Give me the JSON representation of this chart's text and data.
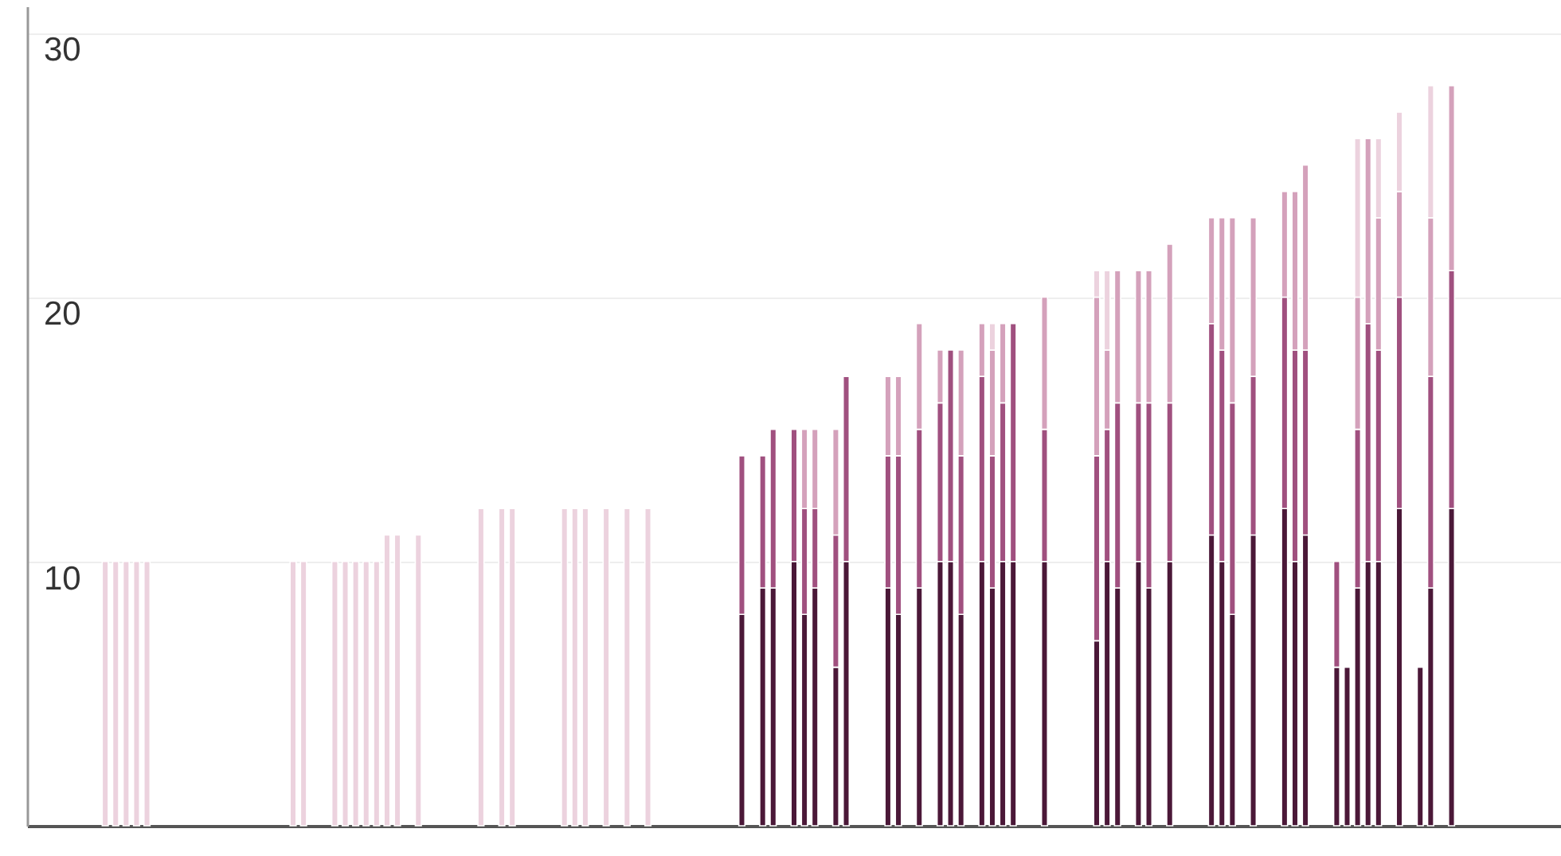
{
  "chart_data": {
    "type": "bar",
    "stacked": true,
    "ylim": [
      0,
      31
    ],
    "yticks": [
      10,
      20,
      30
    ],
    "grid": "y",
    "categories": [
      null,
      null,
      null,
      null,
      null,
      null,
      null,
      null,
      null,
      null,
      null,
      null,
      null,
      null,
      null,
      null,
      null,
      null,
      null,
      null,
      null,
      null,
      null,
      null,
      null,
      null,
      null,
      null,
      null,
      null,
      null,
      null,
      null,
      null,
      null,
      null,
      null,
      null,
      null,
      null,
      null,
      null,
      null,
      null,
      null,
      null,
      null,
      null,
      null,
      null,
      null,
      null,
      null,
      null,
      null,
      null,
      null,
      null,
      null,
      null,
      null,
      null,
      null,
      null,
      null,
      null,
      null,
      null,
      null,
      null,
      null,
      null,
      null,
      null,
      null,
      null,
      null,
      null,
      null,
      null,
      null,
      null,
      null,
      null,
      null,
      null,
      null,
      null,
      null,
      null,
      null,
      null,
      null,
      null,
      null,
      null,
      null,
      null,
      null,
      null,
      null,
      null,
      null,
      null,
      null,
      null,
      null,
      null,
      null,
      null,
      null,
      null,
      null,
      null,
      null,
      null,
      null,
      null,
      null,
      null,
      null,
      null,
      null,
      null,
      null,
      null,
      null,
      null,
      null,
      null,
      null,
      null,
      null,
      null,
      null,
      null,
      null,
      null,
      null,
      null,
      null,
      null,
      null,
      null,
      null,
      null,
      null
    ],
    "series": [
      {
        "color": "#4b1838",
        "values": [
          null,
          null,
          null,
          null,
          null,
          null,
          null,
          null,
          null,
          null,
          null,
          null,
          null,
          null,
          null,
          null,
          null,
          null,
          null,
          null,
          null,
          null,
          null,
          null,
          null,
          null,
          null,
          null,
          null,
          null,
          null,
          null,
          null,
          null,
          null,
          null,
          null,
          null,
          null,
          null,
          null,
          null,
          null,
          null,
          null,
          null,
          null,
          null,
          null,
          null,
          null,
          null,
          null,
          null,
          null,
          null,
          null,
          null,
          null,
          null,
          null,
          null,
          null,
          null,
          null,
          null,
          null,
          null,
          8,
          null,
          9,
          9,
          null,
          10,
          8,
          9,
          null,
          6,
          10,
          null,
          null,
          null,
          9,
          8,
          null,
          9,
          null,
          10,
          10,
          8,
          null,
          10,
          9,
          10,
          10,
          null,
          null,
          10,
          null,
          null,
          null,
          null,
          7,
          10,
          9,
          null,
          10,
          9,
          null,
          10,
          null,
          null,
          null,
          11,
          10,
          8,
          null,
          11,
          null,
          null,
          12,
          10,
          11,
          null,
          null,
          6,
          6,
          9,
          10,
          10,
          null,
          12,
          null,
          6,
          9,
          null,
          12,
          null,
          null,
          null,
          null,
          null,
          null,
          null,
          null,
          null,
          null
        ]
      },
      {
        "color": "#a0507f",
        "values": [
          null,
          null,
          null,
          null,
          null,
          null,
          null,
          null,
          null,
          null,
          null,
          null,
          null,
          null,
          null,
          null,
          null,
          null,
          null,
          null,
          null,
          null,
          null,
          null,
          null,
          null,
          null,
          null,
          null,
          null,
          null,
          null,
          null,
          null,
          null,
          null,
          null,
          null,
          null,
          null,
          null,
          null,
          null,
          null,
          null,
          null,
          null,
          null,
          null,
          null,
          null,
          null,
          null,
          null,
          null,
          null,
          null,
          null,
          null,
          null,
          null,
          null,
          null,
          null,
          null,
          null,
          null,
          null,
          6,
          null,
          5,
          6,
          null,
          5,
          4,
          3,
          null,
          5,
          7,
          null,
          null,
          null,
          5,
          6,
          null,
          6,
          null,
          6,
          8,
          6,
          null,
          7,
          5,
          6,
          9,
          null,
          null,
          5,
          null,
          null,
          null,
          null,
          7,
          5,
          7,
          null,
          6,
          7,
          null,
          6,
          null,
          null,
          null,
          8,
          8,
          8,
          null,
          6,
          null,
          null,
          8,
          8,
          7,
          null,
          null,
          4,
          null,
          6,
          9,
          8,
          null,
          8,
          null,
          null,
          8,
          null,
          9,
          null,
          null,
          null,
          null,
          null,
          null,
          null,
          null,
          null,
          null
        ]
      },
      {
        "color": "#d4a1bb",
        "values": [
          null,
          null,
          null,
          null,
          null,
          null,
          null,
          null,
          null,
          null,
          null,
          null,
          null,
          null,
          null,
          null,
          null,
          null,
          null,
          null,
          null,
          null,
          null,
          null,
          null,
          null,
          null,
          null,
          null,
          null,
          null,
          null,
          null,
          null,
          null,
          null,
          null,
          null,
          null,
          null,
          null,
          null,
          null,
          null,
          null,
          null,
          null,
          null,
          null,
          null,
          null,
          null,
          null,
          null,
          null,
          null,
          null,
          null,
          null,
          null,
          null,
          null,
          null,
          null,
          null,
          null,
          null,
          null,
          null,
          null,
          null,
          null,
          null,
          null,
          3,
          3,
          null,
          4,
          null,
          null,
          null,
          null,
          3,
          3,
          null,
          4,
          null,
          2,
          null,
          4,
          null,
          2,
          4,
          3,
          null,
          null,
          null,
          5,
          null,
          null,
          null,
          null,
          6,
          3,
          5,
          null,
          5,
          5,
          null,
          6,
          null,
          null,
          null,
          4,
          5,
          7,
          null,
          6,
          null,
          null,
          4,
          6,
          7,
          null,
          null,
          null,
          null,
          5,
          7,
          5,
          null,
          4,
          null,
          null,
          6,
          null,
          7,
          null,
          null,
          null,
          null,
          null,
          null,
          null,
          null,
          null,
          null
        ]
      },
      {
        "color": "#ecd2de",
        "values": [
          null,
          null,
          null,
          null,
          null,
          null,
          null,
          10,
          10,
          10,
          10,
          10,
          null,
          null,
          null,
          null,
          null,
          null,
          null,
          null,
          null,
          null,
          null,
          null,
          null,
          10,
          10,
          null,
          null,
          10,
          10,
          10,
          10,
          10,
          11,
          11,
          null,
          11,
          null,
          null,
          null,
          null,
          null,
          12,
          null,
          12,
          12,
          null,
          null,
          null,
          null,
          12,
          12,
          12,
          null,
          12,
          null,
          12,
          null,
          12,
          null,
          null,
          null,
          null,
          null,
          null,
          null,
          null,
          null,
          null,
          null,
          null,
          null,
          null,
          null,
          null,
          null,
          null,
          null,
          null,
          null,
          null,
          null,
          null,
          null,
          null,
          null,
          null,
          null,
          null,
          null,
          null,
          1,
          null,
          null,
          null,
          null,
          null,
          null,
          null,
          null,
          null,
          1,
          3,
          null,
          null,
          null,
          null,
          null,
          null,
          null,
          null,
          null,
          null,
          null,
          null,
          null,
          null,
          null,
          null,
          null,
          null,
          null,
          null,
          null,
          null,
          null,
          6,
          null,
          3,
          null,
          3,
          null,
          null,
          5,
          null,
          null,
          null,
          null,
          null,
          null,
          null,
          null,
          null,
          null,
          null,
          null
        ]
      }
    ]
  }
}
